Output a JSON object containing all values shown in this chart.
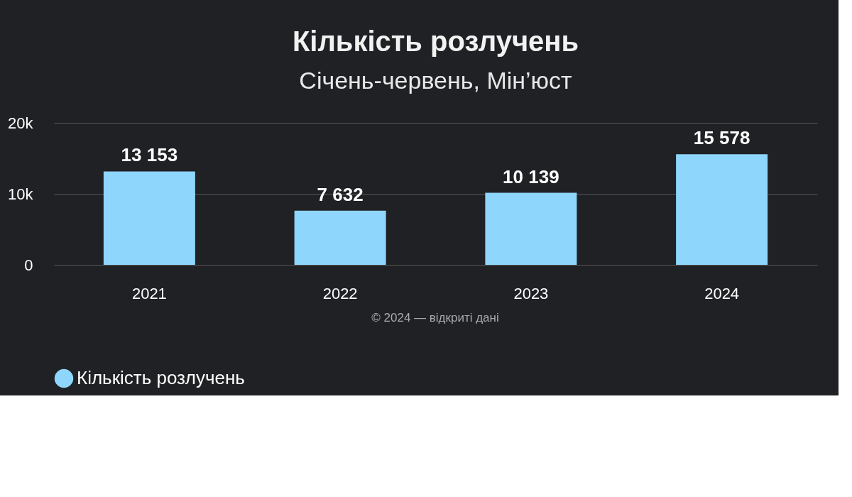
{
  "chart_data": {
    "type": "bar",
    "title": "Кількість розлучень",
    "subtitle": "Січень-червень, Мін’юст",
    "categories": [
      "2021",
      "2022",
      "2023",
      "2024"
    ],
    "series": [
      {
        "name": "Кількість розлучень",
        "color": "#8fd6fc",
        "values": [
          13153,
          7632,
          10139,
          15578
        ],
        "value_labels": [
          "13 153",
          "7 632",
          "10 139",
          "15 578"
        ]
      }
    ],
    "ylim": [
      0,
      20000
    ],
    "yticks": [
      0,
      {
        "value": 10000,
        "label": "10k"
      },
      {
        "value": 20000,
        "label": "20k"
      }
    ],
    "grid": "y",
    "legend": "bottom",
    "annotations": [
      "© 2024 — відкриті дані"
    ]
  }
}
